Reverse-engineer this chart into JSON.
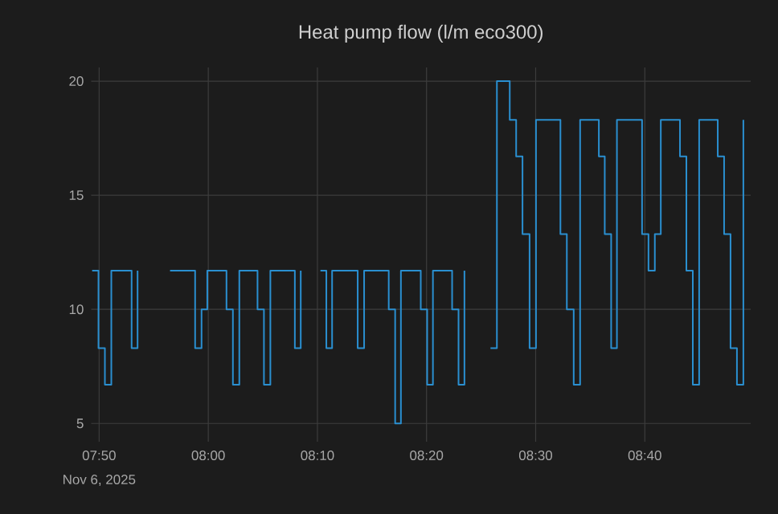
{
  "chart_data": {
    "type": "step",
    "title": "Heat pump flow (l/m eco300)",
    "x": [
      7.8226,
      7.8323,
      7.8421,
      7.8519,
      7.8829,
      7.892,
      7.9,
      7.9416,
      7.9799,
      7.9897,
      7.9985,
      8.0278,
      8.0376,
      8.0474,
      8.0752,
      8.085,
      8.0948,
      8.1322,
      8.1412,
      8.15,
      8.1713,
      8.1803,
      8.1891,
      8.2282,
      8.238,
      8.2756,
      8.2854,
      8.2942,
      8.3245,
      8.3343,
      8.3431,
      8.3724,
      8.3822,
      8.3912,
      8.41,
      8.431,
      8.4408,
      8.4604,
      8.4702,
      8.4799,
      8.4907,
      8.5005,
      8.5378,
      8.5476,
      8.5581,
      8.5679,
      8.5965,
      8.6055,
      8.6153,
      8.6241,
      8.6625,
      8.6723,
      8.682,
      8.6911,
      8.7204,
      8.7302,
      8.74,
      8.7497,
      8.7781,
      8.7878,
      8.7976,
      8.8074,
      8.8172
    ],
    "series": [
      {
        "color": "#2a8fd0",
        "values": [
          11.7,
          8.3,
          6.7,
          11.7,
          8.3,
          11.7,
          null,
          11.7,
          8.3,
          10,
          11.7,
          10,
          6.7,
          11.7,
          10,
          6.7,
          11.7,
          8.3,
          11.7,
          null,
          11.7,
          8.3,
          11.7,
          8.3,
          11.7,
          10,
          5,
          11.7,
          10,
          6.7,
          11.7,
          10,
          6.7,
          11.7,
          null,
          8.3,
          20,
          18.3,
          16.7,
          13.3,
          8.3,
          18.3,
          13.3,
          10,
          6.7,
          18.3,
          16.7,
          13.3,
          8.3,
          18.3,
          13.3,
          11.7,
          13.3,
          18.3,
          16.7,
          11.7,
          6.7,
          18.3,
          16.7,
          13.3,
          8.3,
          6.7,
          18.3
        ]
      }
    ],
    "xlim": [
      7.8211,
      8.8284
    ],
    "xticks": [
      {
        "value": 7.8333,
        "label": "07:50"
      },
      {
        "value": 8,
        "label": "08:00"
      },
      {
        "value": 8.1667,
        "label": "08:10"
      },
      {
        "value": 8.3333,
        "label": "08:20"
      },
      {
        "value": 8.5,
        "label": "08:30"
      },
      {
        "value": 8.6667,
        "label": "08:40"
      }
    ],
    "ylim": [
      4.2,
      20.6
    ],
    "yticks": [
      5,
      10,
      15,
      20
    ],
    "grid": true,
    "marker": "none",
    "line_style": "solid",
    "annotations": [
      "Nov 6, 2025"
    ]
  }
}
